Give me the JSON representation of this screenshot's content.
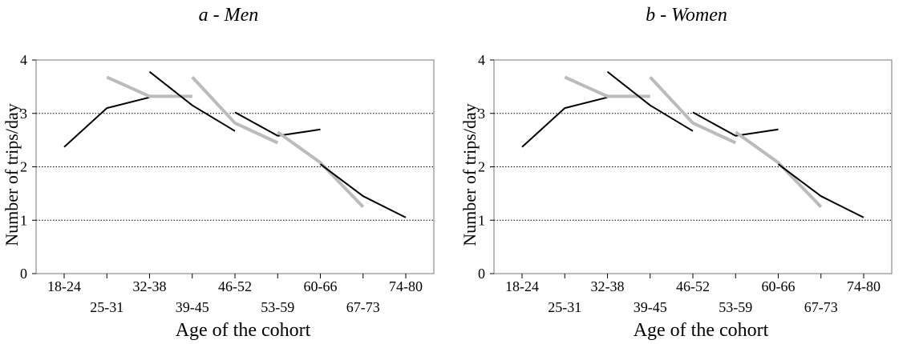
{
  "chart_data": [
    {
      "type": "line",
      "title": "a - Men",
      "xlabel": "Age of the cohort",
      "ylabel": "Number of trips/day",
      "ylim": [
        0,
        4
      ],
      "yticks": [
        "0",
        "1",
        "2",
        "3",
        "4"
      ],
      "grid": "dotted horizontal at 1, 2, 3",
      "categories": [
        "18-24",
        "25-31",
        "32-38",
        "39-45",
        "46-52",
        "53-59",
        "60-66",
        "67-73",
        "74-80"
      ],
      "tick_labels_top": [
        "18-24",
        "32-38",
        "46-52",
        "60-66",
        "74-80"
      ],
      "tick_labels_bottom": [
        "25-31",
        "39-45",
        "53-59",
        "67-73"
      ],
      "series": [
        {
          "color": "#000000",
          "x": [
            "18-24",
            "25-31",
            "32-38"
          ],
          "y": [
            2.37,
            3.1,
            3.3
          ]
        },
        {
          "color": "#bbbbbb",
          "x": [
            "25-31",
            "32-38",
            "39-45"
          ],
          "y": [
            3.68,
            3.32,
            3.32
          ]
        },
        {
          "color": "#000000",
          "x": [
            "32-38",
            "39-45",
            "46-52"
          ],
          "y": [
            3.78,
            3.15,
            2.67
          ]
        },
        {
          "color": "#bbbbbb",
          "x": [
            "39-45",
            "46-52",
            "53-59"
          ],
          "y": [
            3.68,
            2.82,
            2.45
          ]
        },
        {
          "color": "#000000",
          "x": [
            "46-52",
            "53-59",
            "60-66"
          ],
          "y": [
            3.02,
            2.58,
            2.7
          ]
        },
        {
          "color": "#bbbbbb",
          "x": [
            "53-59",
            "60-66",
            "67-73"
          ],
          "y": [
            2.65,
            2.08,
            1.25
          ]
        },
        {
          "color": "#000000",
          "x": [
            "60-66",
            "67-73",
            "74-80"
          ],
          "y": [
            2.05,
            1.45,
            1.05
          ]
        }
      ]
    },
    {
      "type": "line",
      "title": "b - Women",
      "xlabel": "Age of the cohort",
      "ylabel": "Number of trips/day",
      "ylim": [
        0,
        4
      ],
      "yticks": [
        "0",
        "1",
        "2",
        "3",
        "4"
      ],
      "grid": "dotted horizontal at 1, 2, 3",
      "categories": [
        "18-24",
        "25-31",
        "32-38",
        "39-45",
        "46-52",
        "53-59",
        "60-66",
        "67-73",
        "74-80"
      ],
      "tick_labels_top": [
        "18-24",
        "32-38",
        "46-52",
        "60-66",
        "74-80"
      ],
      "tick_labels_bottom": [
        "25-31",
        "39-45",
        "53-59",
        "67-73"
      ],
      "series": [
        {
          "color": "#000000",
          "x": [
            "18-24",
            "25-31",
            "32-38"
          ],
          "y": [
            2.37,
            3.1,
            3.3
          ]
        },
        {
          "color": "#bbbbbb",
          "x": [
            "25-31",
            "32-38",
            "39-45"
          ],
          "y": [
            3.68,
            3.32,
            3.32
          ]
        },
        {
          "color": "#000000",
          "x": [
            "32-38",
            "39-45",
            "46-52"
          ],
          "y": [
            3.78,
            3.15,
            2.67
          ]
        },
        {
          "color": "#bbbbbb",
          "x": [
            "39-45",
            "46-52",
            "53-59"
          ],
          "y": [
            3.68,
            2.82,
            2.45
          ]
        },
        {
          "color": "#000000",
          "x": [
            "46-52",
            "53-59",
            "60-66"
          ],
          "y": [
            3.02,
            2.58,
            2.7
          ]
        },
        {
          "color": "#bbbbbb",
          "x": [
            "53-59",
            "60-66",
            "67-73"
          ],
          "y": [
            2.65,
            2.08,
            1.25
          ]
        },
        {
          "color": "#000000",
          "x": [
            "60-66",
            "67-73",
            "74-80"
          ],
          "y": [
            2.05,
            1.45,
            1.05
          ]
        }
      ]
    }
  ]
}
